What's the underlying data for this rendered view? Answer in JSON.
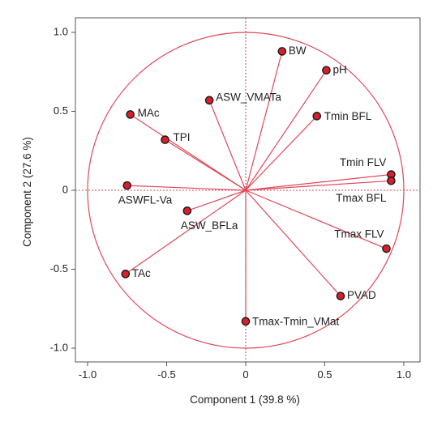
{
  "chart_data": {
    "type": "scatter",
    "subtype": "biplot-loading-plot",
    "xlabel": "Component 1 (39.8 %)",
    "ylabel": "Component 2  (27.6 %)",
    "xlim": [
      -1.1,
      1.1
    ],
    "ylim": [
      -1.1,
      1.1
    ],
    "x_ticks": [
      -1.0,
      -0.5,
      0,
      0.5,
      1.0
    ],
    "y_ticks": [
      -1.0,
      -0.5,
      0,
      0.5,
      1.0
    ],
    "x_tick_labels": [
      "-1.0",
      "-0.5",
      "0",
      "0.5",
      "1.0"
    ],
    "y_tick_labels": [
      "-1.0",
      "-0.5",
      "0",
      "0.5",
      "1.0"
    ],
    "grid": false,
    "unit_circle": true,
    "reference_lines": [
      "x=0",
      "y=0"
    ],
    "colors": {
      "lines": "#e0485a",
      "marker_fill": "#d91f2b",
      "marker_stroke": "#1a1a1a",
      "frame": "#555555"
    },
    "points": [
      {
        "label": "BW",
        "x": 0.23,
        "y": 0.88
      },
      {
        "label": "pH",
        "x": 0.51,
        "y": 0.76
      },
      {
        "label": "ASW_VMATa",
        "x": -0.23,
        "y": 0.57
      },
      {
        "label": "Tmin BFL",
        "x": 0.45,
        "y": 0.47
      },
      {
        "label": "MAc",
        "x": -0.73,
        "y": 0.48
      },
      {
        "label": "TPI",
        "x": -0.51,
        "y": 0.32
      },
      {
        "label": "Tmin FLV",
        "x": 0.92,
        "y": 0.1
      },
      {
        "label": "Tmax BFL",
        "x": 0.92,
        "y": 0.06
      },
      {
        "label": "ASWFL-Va",
        "x": -0.75,
        "y": 0.03
      },
      {
        "label": "ASW_BFLa",
        "x": -0.37,
        "y": -0.13
      },
      {
        "label": "Tmax FLV",
        "x": 0.89,
        "y": -0.37
      },
      {
        "label": "TAc",
        "x": -0.76,
        "y": -0.53
      },
      {
        "label": "PVAD",
        "x": 0.6,
        "y": -0.67
      },
      {
        "label": "Tmax-Tmin_VMat",
        "x": 0.0,
        "y": -0.83
      }
    ]
  }
}
